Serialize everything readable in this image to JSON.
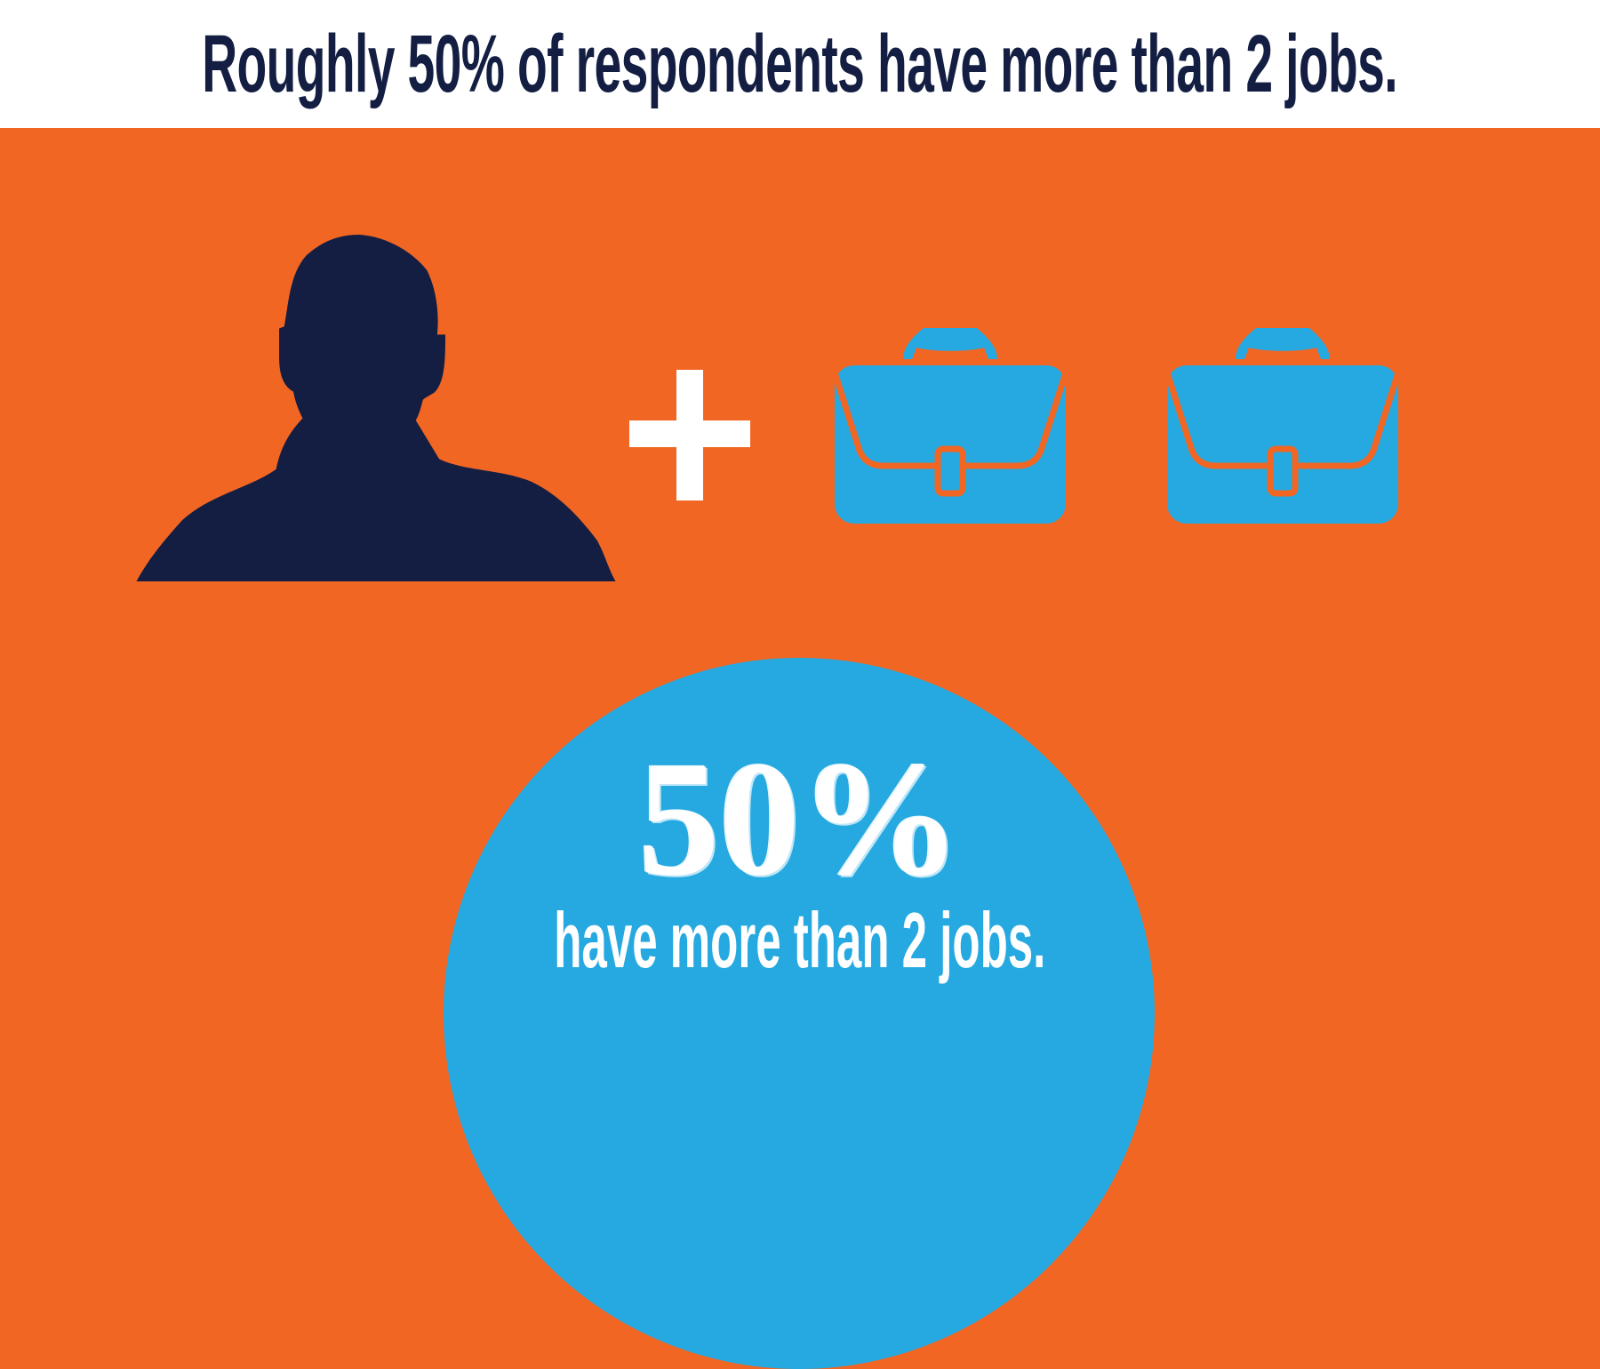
{
  "header": {
    "title": "Roughly 50% of respondents have more than 2 jobs."
  },
  "illustration": {
    "person_icon": "person-silhouette-icon",
    "operator": "+",
    "job_icons": [
      "briefcase-icon",
      "briefcase-icon"
    ]
  },
  "stat": {
    "value": "50%",
    "caption": "have more than 2 jobs.",
    "fraction": 0.5
  },
  "colors": {
    "background": "#F26624",
    "navy": "#131E42",
    "blue": "#26A9E0",
    "white": "#FFFFFF"
  }
}
